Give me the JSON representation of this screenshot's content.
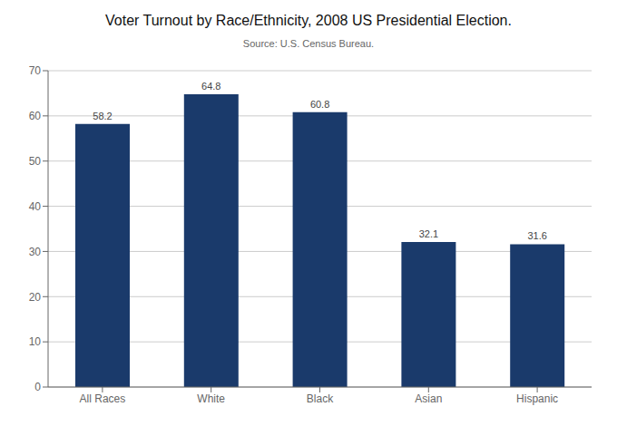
{
  "chart_data": {
    "type": "bar",
    "title": "Voter Turnout by Race/Ethnicity, 2008 US Presidential Election.",
    "subtitle": "Source: U.S. Census Bureau.",
    "categories": [
      "All Races",
      "White",
      "Black",
      "Asian",
      "Hispanic"
    ],
    "values": [
      58.2,
      64.8,
      60.8,
      32.1,
      31.6
    ],
    "color": "#1a3a6b",
    "ylim": [
      0,
      70
    ],
    "yticks": [
      0,
      10,
      20,
      30,
      40,
      50,
      60,
      70
    ],
    "grid": true,
    "data_labels": true
  }
}
